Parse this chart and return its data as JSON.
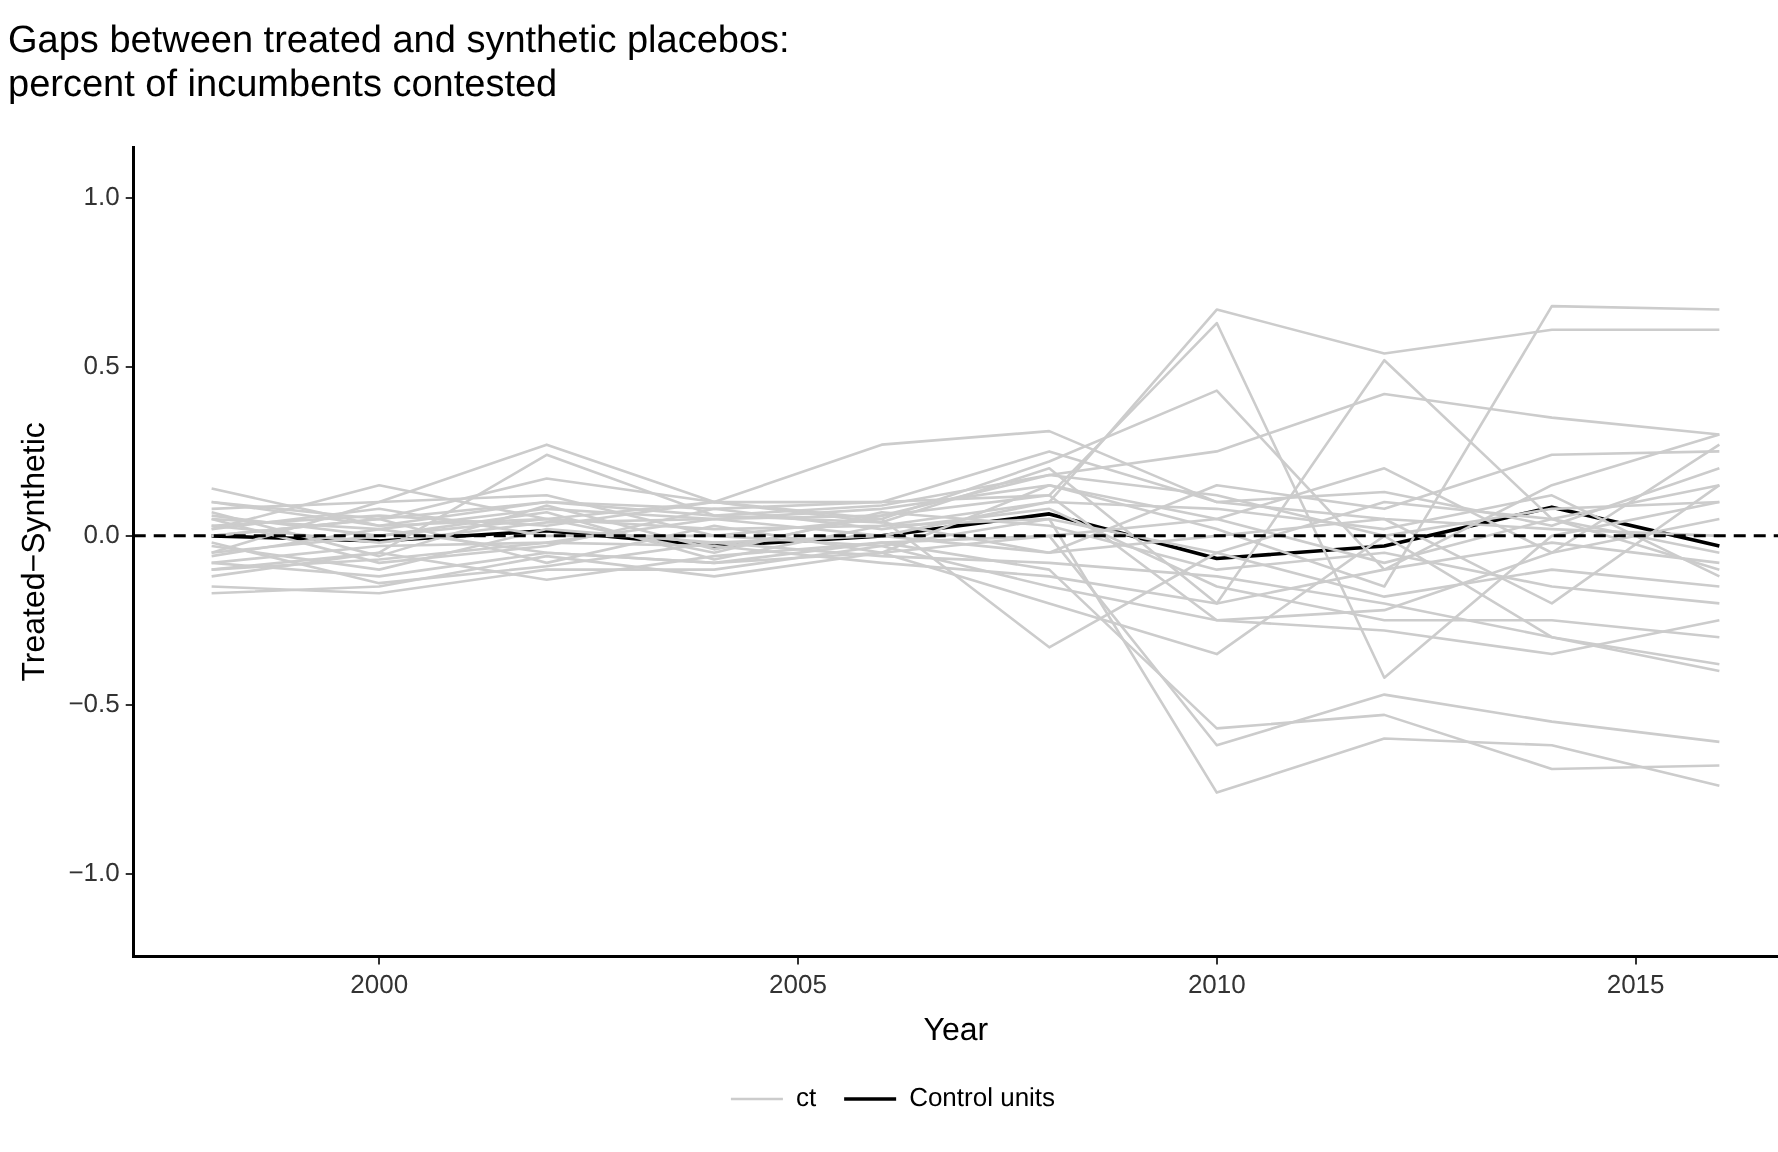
{
  "chart_data": {
    "type": "line",
    "title": "Gaps between treated and synthetic placebos:\npercent of incumbents contested",
    "xlabel": "Year",
    "ylabel": "Treated−Synthetic",
    "x": [
      1998,
      2000,
      2002,
      2004,
      2006,
      2008,
      2010,
      2012,
      2014,
      2016
    ],
    "xlim": [
      1997.07,
      2016.7
    ],
    "xticks": [
      2000,
      2005,
      2010,
      2015
    ],
    "ylim": [
      -1.245,
      1.15
    ],
    "yticks": [
      {
        "value": -1,
        "label": "−1.0"
      },
      {
        "value": -0.5,
        "label": "−0.5"
      },
      {
        "value": 0,
        "label": "0.0"
      },
      {
        "value": 0.5,
        "label": "0.5"
      },
      {
        "value": 1,
        "label": "1.0"
      }
    ],
    "grid": false,
    "legend": "bottom",
    "marker": "none",
    "line_style": "solid",
    "ref_lines": [
      {
        "axis": "y",
        "value": 0,
        "color": "#000000",
        "line_style": "dashed"
      }
    ],
    "series": [
      {
        "name": "ct",
        "color": "#cccccc",
        "values": [
          0.14,
          0.03,
          0.05,
          0.02,
          0.03,
          0.1,
          0.67,
          0.54,
          0.61,
          0.61
        ]
      },
      {
        "color": "#cccccc",
        "values": [
          0.05,
          0.02,
          0.08,
          0.05,
          0.08,
          0.15,
          0.02,
          -0.15,
          0.68,
          0.67
        ]
      },
      {
        "color": "#cccccc",
        "values": [
          -0.05,
          0.1,
          0.27,
          0.1,
          0.27,
          0.31,
          0.1,
          0.05,
          0.02,
          0.0
        ]
      },
      {
        "color": "#cccccc",
        "values": [
          0.02,
          0.15,
          0.05,
          0.1,
          0.05,
          0.22,
          0.43,
          -0.1,
          0.15,
          0.3
        ]
      },
      {
        "color": "#cccccc",
        "values": [
          -0.1,
          -0.05,
          0.24,
          0.06,
          0.04,
          0.2,
          -0.2,
          0.52,
          0.05,
          -0.1
        ]
      },
      {
        "color": "#cccccc",
        "values": [
          0.0,
          0.05,
          0.1,
          0.08,
          0.1,
          0.12,
          0.63,
          -0.42,
          0.0,
          0.1
        ]
      },
      {
        "color": "#cccccc",
        "values": [
          0.03,
          -0.02,
          0.04,
          0.05,
          0.06,
          0.18,
          0.25,
          0.42,
          0.35,
          0.3
        ]
      },
      {
        "color": "#cccccc",
        "values": [
          -0.15,
          -0.17,
          -0.1,
          -0.1,
          -0.03,
          0.05,
          -0.76,
          -0.6,
          -0.62,
          -0.74
        ]
      },
      {
        "color": "#cccccc",
        "values": [
          -0.08,
          -0.12,
          -0.05,
          -0.08,
          -0.05,
          0.0,
          -0.62,
          -0.47,
          -0.55,
          -0.61
        ]
      },
      {
        "color": "#cccccc",
        "values": [
          -0.12,
          -0.05,
          -0.13,
          -0.06,
          -0.02,
          -0.1,
          -0.57,
          -0.53,
          -0.69,
          -0.68
        ]
      },
      {
        "color": "#cccccc",
        "values": [
          0.08,
          0.1,
          0.12,
          0.0,
          0.05,
          -0.33,
          -0.05,
          0.1,
          0.05,
          0.15
        ]
      },
      {
        "color": "#cccccc",
        "values": [
          -0.17,
          -0.15,
          -0.06,
          -0.12,
          -0.05,
          -0.2,
          -0.35,
          0.0,
          -0.3,
          -0.4
        ]
      },
      {
        "color": "#cccccc",
        "values": [
          0.1,
          0.05,
          0.17,
          0.1,
          0.1,
          0.25,
          0.1,
          0.13,
          0.03,
          0.2
        ]
      },
      {
        "color": "#cccccc",
        "values": [
          -0.03,
          -0.1,
          0.02,
          -0.02,
          0.0,
          -0.05,
          0.15,
          0.08,
          0.24,
          0.25
        ]
      },
      {
        "color": "#cccccc",
        "values": [
          0.05,
          -0.08,
          -0.03,
          0.08,
          0.02,
          0.08,
          -0.15,
          -0.25,
          -0.25,
          -0.3
        ]
      },
      {
        "color": "#cccccc",
        "values": [
          0.0,
          0.05,
          -0.08,
          0.03,
          -0.05,
          0.15,
          0.05,
          0.2,
          -0.05,
          0.05
        ]
      },
      {
        "color": "#cccccc",
        "values": [
          -0.05,
          0.0,
          0.05,
          -0.05,
          0.07,
          0.03,
          -0.1,
          -0.05,
          -0.15,
          -0.2
        ]
      },
      {
        "color": "#cccccc",
        "values": [
          0.02,
          0.08,
          0.0,
          0.0,
          -0.03,
          -0.15,
          -0.25,
          -0.28,
          -0.35,
          -0.25
        ]
      },
      {
        "color": "#cccccc",
        "values": [
          -0.08,
          -0.03,
          -0.02,
          0.05,
          0.0,
          0.1,
          0.08,
          0.02,
          0.12,
          -0.12
        ]
      },
      {
        "color": "#cccccc",
        "values": [
          0.06,
          0.0,
          0.07,
          -0.07,
          0.03,
          0.05,
          -0.05,
          -0.18,
          -0.1,
          -0.15
        ]
      },
      {
        "color": "#cccccc",
        "values": [
          -0.02,
          -0.14,
          -0.09,
          -0.02,
          -0.06,
          -0.08,
          -0.12,
          -0.2,
          -0.3,
          -0.38
        ]
      },
      {
        "color": "#cccccc",
        "values": [
          0.1,
          0.03,
          0.1,
          0.06,
          0.09,
          0.18,
          0.12,
          0.0,
          0.08,
          0.1
        ]
      },
      {
        "color": "#cccccc",
        "values": [
          -0.1,
          -0.07,
          -0.02,
          -0.03,
          -0.08,
          -0.12,
          -0.2,
          -0.1,
          -0.02,
          -0.08
        ]
      },
      {
        "color": "#cccccc",
        "values": [
          0.03,
          0.06,
          0.03,
          0.1,
          0.04,
          -0.05,
          0.0,
          0.05,
          -0.2,
          0.15
        ]
      },
      {
        "color": "#cccccc",
        "values": [
          -0.06,
          0.02,
          -0.05,
          -0.08,
          -0.02,
          0.0,
          0.05,
          -0.08,
          0.05,
          -0.05
        ]
      },
      {
        "color": "#cccccc",
        "values": [
          0.07,
          -0.06,
          0.09,
          -0.04,
          0.06,
          0.12,
          -0.25,
          -0.22,
          -0.05,
          0.27
        ]
      },
      {
        "name": "Control units",
        "color": "#000000",
        "values": [
          0.0,
          -0.015,
          0.015,
          -0.03,
          0.0,
          0.065,
          -0.067,
          -0.03,
          0.085,
          -0.03
        ]
      }
    ]
  }
}
